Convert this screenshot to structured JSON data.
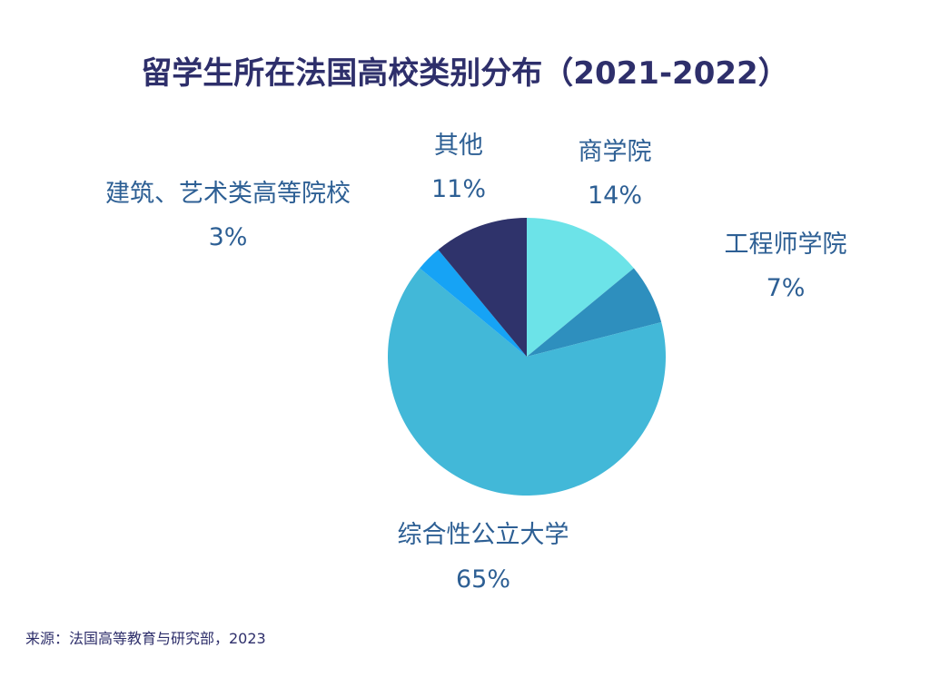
{
  "chart_data": {
    "type": "pie",
    "title": "留学生所在法国高校类别分布（2021-2022）",
    "slices": [
      {
        "label": "商学院",
        "value": 14,
        "value_label": "14%",
        "color": "#6ce3e8"
      },
      {
        "label": "工程师学院",
        "value": 7,
        "value_label": "7%",
        "color": "#2e8fbe"
      },
      {
        "label": "综合性公立大学",
        "value": 65,
        "value_label": "65%",
        "color": "#42b8d8"
      },
      {
        "label": "建筑、艺术类高等院校",
        "value": 3,
        "value_label": "3%",
        "color": "#16a3f5"
      },
      {
        "label": "其他",
        "value": 11,
        "value_label": "11%",
        "color": "#2f336b"
      }
    ],
    "start": "12 o'clock",
    "direction": "clockwise",
    "source": "来源：法国高等教育与研究部，2023"
  }
}
